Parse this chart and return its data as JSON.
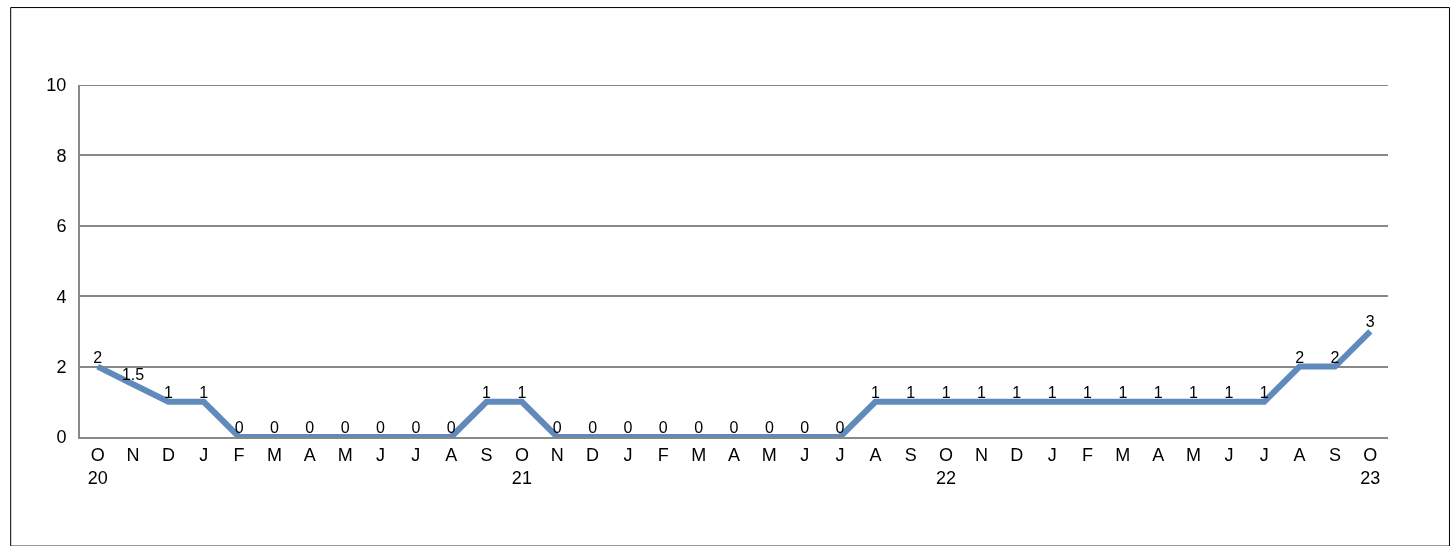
{
  "chart_data": {
    "type": "line",
    "categories": [
      "O\n20",
      "N",
      "D",
      "J",
      "F",
      "M",
      "A",
      "M",
      "J",
      "J",
      "A",
      "S",
      "O\n21",
      "N",
      "D",
      "J",
      "F",
      "M",
      "A",
      "M",
      "J",
      "J",
      "A",
      "S",
      "O\n22",
      "N",
      "D",
      "J",
      "F",
      "M",
      "A",
      "M",
      "J",
      "J",
      "A",
      "S",
      "O\n23"
    ],
    "series": [
      {
        "color": "#5f8abb",
        "values": [
          2,
          1.5,
          1,
          1,
          0,
          0,
          0,
          0,
          0,
          0,
          0,
          1,
          1,
          0,
          0,
          0,
          0,
          0,
          0,
          0,
          0,
          0,
          1,
          1,
          1,
          1,
          1,
          1,
          1,
          1,
          1,
          1,
          1,
          1,
          2,
          2,
          3
        ]
      }
    ],
    "ylim": [
      0,
      10
    ],
    "yticks": [
      0,
      2,
      4,
      6,
      8,
      10
    ],
    "grid": "y",
    "data_labels": true,
    "marker": "none",
    "line_style": "solid"
  }
}
